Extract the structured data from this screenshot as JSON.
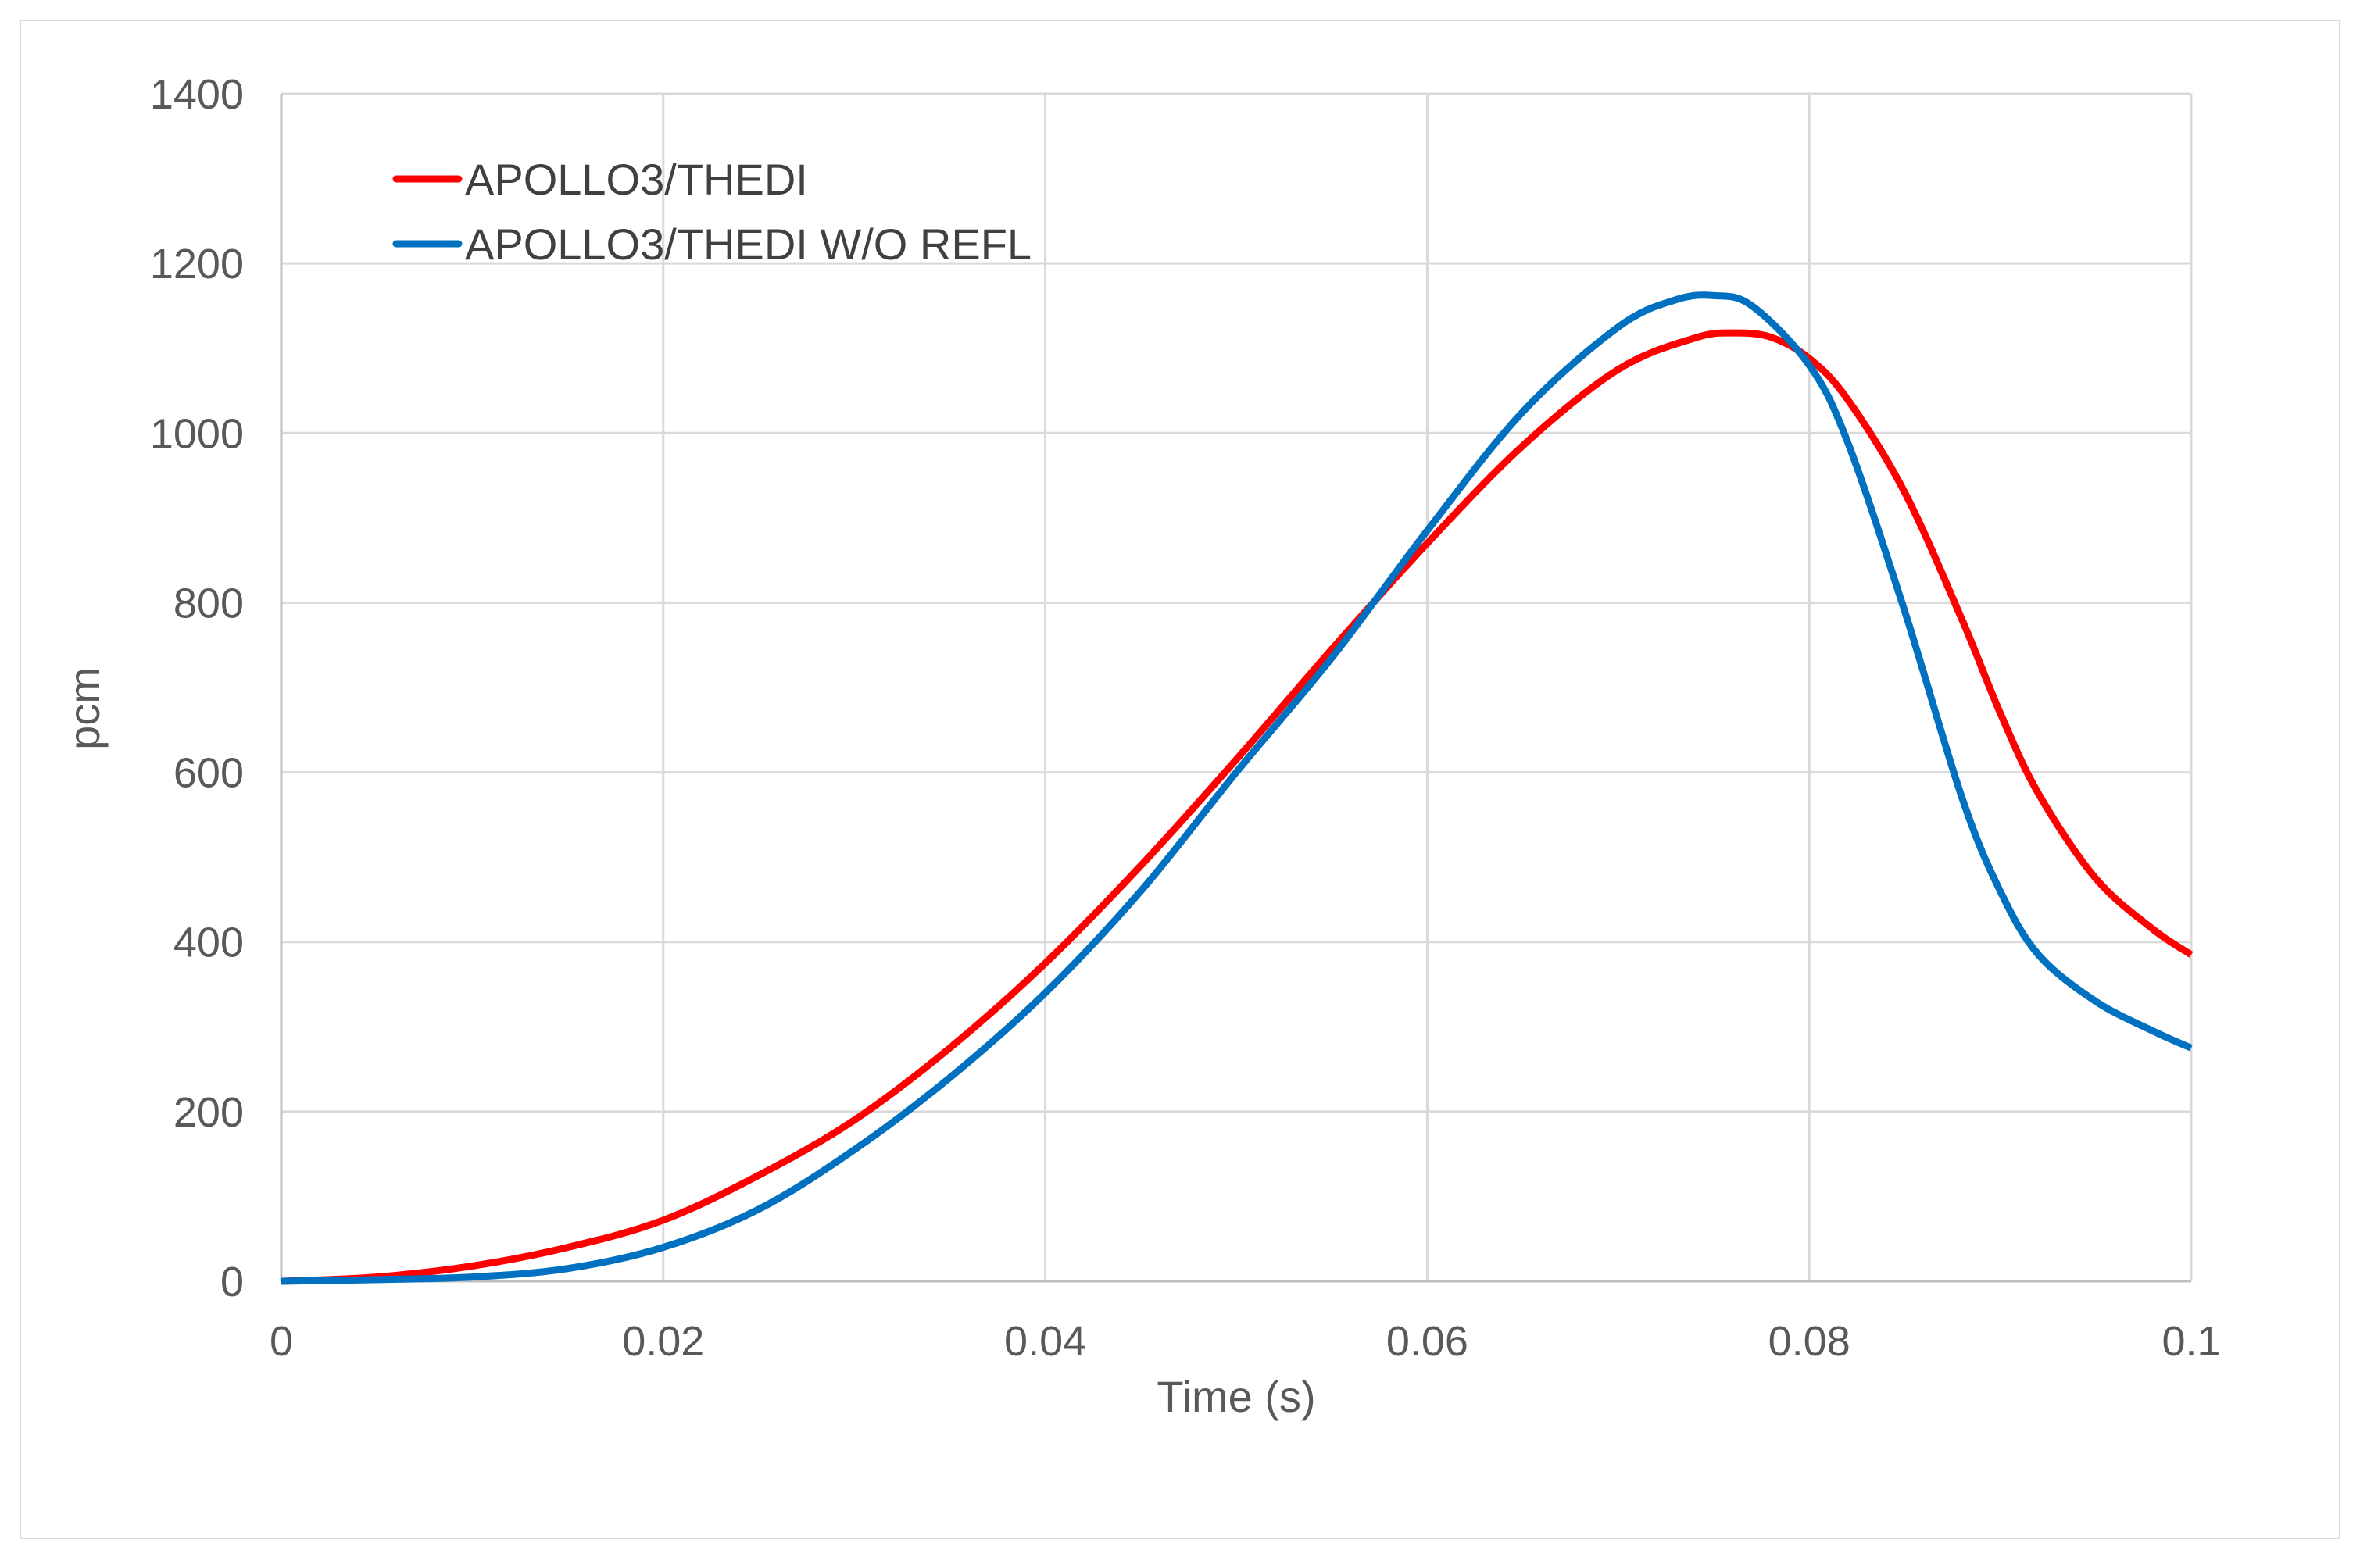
{
  "chart_data": {
    "type": "line",
    "title": "",
    "xlabel": "Time (s)",
    "ylabel": "pcm",
    "xlim": [
      0,
      0.1
    ],
    "ylim": [
      0,
      1400
    ],
    "x_ticks": [
      "0",
      "0.02",
      "0.04",
      "0.06",
      "0.08",
      "0.1"
    ],
    "y_ticks": [
      "0",
      "200",
      "400",
      "600",
      "800",
      "1000",
      "1200",
      "1400"
    ],
    "grid": true,
    "legend_position": "top-left",
    "series": [
      {
        "name": "APOLLO3/THEDI",
        "color": "#ff0000",
        "x": [
          0,
          0.005,
          0.01,
          0.015,
          0.02,
          0.025,
          0.03,
          0.035,
          0.04,
          0.045,
          0.05,
          0.055,
          0.06,
          0.065,
          0.07,
          0.074,
          0.076,
          0.078,
          0.08,
          0.082,
          0.085,
          0.088,
          0.09,
          0.092,
          0.095,
          0.098,
          0.1
        ],
        "y": [
          0,
          5,
          18,
          40,
          72,
          125,
          190,
          275,
          375,
          490,
          615,
          745,
          870,
          985,
          1075,
          1112,
          1118,
          1113,
          1088,
          1040,
          930,
          780,
          670,
          575,
          475,
          415,
          385
        ]
      },
      {
        "name": "APOLLO3/THEDI W/O REFL",
        "color": "#0070c0",
        "x": [
          0,
          0.005,
          0.01,
          0.015,
          0.02,
          0.025,
          0.03,
          0.035,
          0.04,
          0.045,
          0.05,
          0.055,
          0.06,
          0.065,
          0.07,
          0.073,
          0.075,
          0.077,
          0.08,
          0.082,
          0.085,
          0.088,
          0.09,
          0.092,
          0.095,
          0.098,
          0.1
        ],
        "y": [
          0,
          2,
          5,
          15,
          40,
          85,
          155,
          240,
          340,
          460,
          600,
          735,
          885,
          1025,
          1125,
          1157,
          1162,
          1150,
          1080,
          990,
          790,
          570,
          460,
          385,
          330,
          295,
          275
        ]
      }
    ]
  }
}
